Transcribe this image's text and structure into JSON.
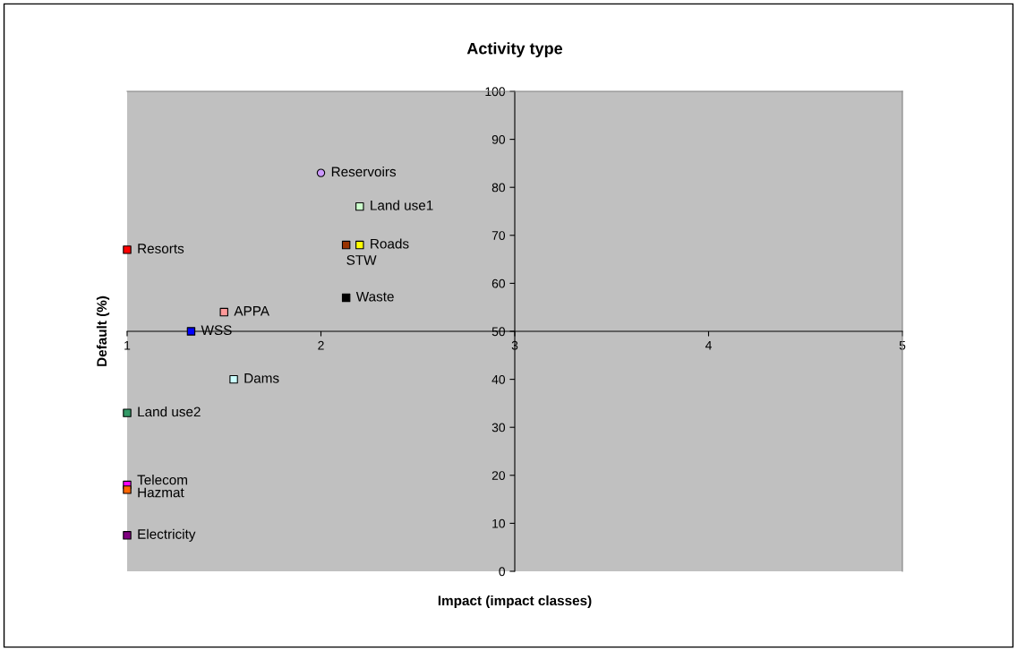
{
  "chart_data": {
    "type": "scatter",
    "title": "Activity type",
    "xlabel": "Impact (impact classes)",
    "ylabel": "Default (%)",
    "xlim": [
      1,
      5
    ],
    "xticks": [
      1,
      2,
      3,
      4,
      5
    ],
    "ylim": [
      0,
      100
    ],
    "yticks": [
      0,
      10,
      20,
      30,
      40,
      50,
      60,
      70,
      80,
      90,
      100
    ],
    "grid": false,
    "legend": false,
    "marker": "square",
    "series": [
      {
        "name": "Reservoirs",
        "color": "#cc99ff",
        "marker": "circle",
        "x": [
          2.0
        ],
        "values": [
          83
        ]
      },
      {
        "name": "Land use1",
        "color": "#ccffcc",
        "x": [
          2.2
        ],
        "values": [
          76
        ]
      },
      {
        "name": "Resorts",
        "color": "#ff0000",
        "x": [
          1.0
        ],
        "values": [
          67
        ]
      },
      {
        "name": "STW",
        "color": "#993300",
        "x": [
          2.13
        ],
        "values": [
          68
        ]
      },
      {
        "name": "Roads",
        "color": "#ffff00",
        "x": [
          2.2
        ],
        "values": [
          68
        ]
      },
      {
        "name": "Waste",
        "color": "#000000",
        "x": [
          2.13
        ],
        "values": [
          57
        ]
      },
      {
        "name": "APPA",
        "color": "#ff9999",
        "x": [
          1.5
        ],
        "values": [
          54
        ]
      },
      {
        "name": "WSS",
        "color": "#0000ff",
        "x": [
          1.33
        ],
        "values": [
          50
        ]
      },
      {
        "name": "Dams",
        "color": "#ccffff",
        "x": [
          1.55
        ],
        "values": [
          40
        ]
      },
      {
        "name": "Land use2",
        "color": "#339966",
        "x": [
          1.0
        ],
        "values": [
          33
        ]
      },
      {
        "name": "Telecom",
        "color": "#ff00ff",
        "x": [
          1.0
        ],
        "values": [
          18
        ]
      },
      {
        "name": "Hazmat",
        "color": "#ff6600",
        "x": [
          1.0
        ],
        "values": [
          17
        ]
      },
      {
        "name": "Electricity",
        "color": "#800080",
        "x": [
          1.0
        ],
        "values": [
          7.5
        ]
      }
    ]
  }
}
